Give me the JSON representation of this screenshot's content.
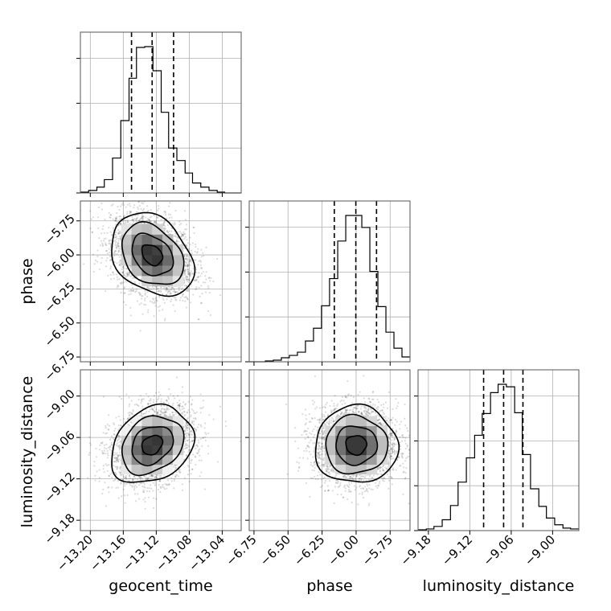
{
  "chart_data": {
    "type": "corner",
    "grid": true,
    "parameters": [
      "geocent_time",
      "phase",
      "luminosity_distance"
    ],
    "axis_labels": {
      "geocent_time": "geocent_time",
      "phase": "phase",
      "luminosity_distance": "luminosity_distance"
    },
    "ranges": {
      "geocent_time": [
        -13.212,
        -13.017
      ],
      "phase": [
        -6.785,
        -5.604
      ],
      "luminosity_distance": [
        -9.195,
        -8.962
      ]
    },
    "ticks": {
      "geocent_time": [
        -13.2,
        -13.16,
        -13.12,
        -13.08,
        -13.04
      ],
      "phase": [
        -6.75,
        -6.5,
        -6.25,
        -6.0,
        -5.75
      ],
      "luminosity_distance": [
        -9.18,
        -9.12,
        -9.06,
        -9.0
      ]
    },
    "tick_labels": {
      "geocent_time": [
        "−13.20",
        "−13.16",
        "−13.12",
        "−13.08",
        "−13.04"
      ],
      "phase": [
        "−6.75",
        "−6.50",
        "−6.25",
        "−6.00",
        "−5.75"
      ],
      "luminosity_distance": [
        "−9.18",
        "−9.12",
        "−9.06",
        "−9.00"
      ]
    },
    "quantiles": {
      "geocent_time": [
        -13.15,
        -13.125,
        -13.099
      ],
      "phase": [
        -6.16,
        -6.002,
        -5.85
      ],
      "luminosity_distance": [
        -9.1,
        -9.071,
        -9.043
      ]
    },
    "histograms": {
      "geocent_time": {
        "edges": [
          -13.212,
          -13.202,
          -13.192,
          -13.183,
          -13.173,
          -13.163,
          -13.153,
          -13.144,
          -13.134,
          -13.124,
          -13.114,
          -13.105,
          -13.095,
          -13.085,
          -13.076,
          -13.066,
          -13.056,
          -13.046,
          -13.037,
          -13.027,
          -13.017
        ],
        "counts": [
          1,
          3,
          7,
          16,
          42,
          87,
          138,
          175,
          176,
          147,
          97,
          54,
          39,
          24,
          12,
          7,
          3,
          1,
          0,
          0
        ]
      },
      "phase": {
        "edges": [
          -6.785,
          -6.726,
          -6.667,
          -6.608,
          -6.549,
          -6.49,
          -6.431,
          -6.372,
          -6.313,
          -6.254,
          -6.195,
          -6.135,
          -6.076,
          -6.017,
          -5.958,
          -5.899,
          -5.84,
          -5.781,
          -5.722,
          -5.663,
          -5.604
        ],
        "counts": [
          0,
          0,
          1,
          2,
          5,
          8,
          12,
          26,
          42,
          70,
          104,
          151,
          183,
          183,
          168,
          113,
          69,
          37,
          17,
          6
        ]
      },
      "luminosity_distance": {
        "edges": [
          -9.195,
          -9.183,
          -9.172,
          -9.16,
          -9.148,
          -9.137,
          -9.125,
          -9.113,
          -9.102,
          -9.09,
          -9.079,
          -9.067,
          -9.055,
          -9.044,
          -9.032,
          -9.02,
          -9.009,
          -8.997,
          -8.985,
          -8.974,
          -8.962
        ],
        "counts": [
          1,
          2,
          5,
          13,
          30,
          58,
          87,
          114,
          140,
          165,
          175,
          172,
          141,
          91,
          50,
          29,
          15,
          7,
          3,
          2
        ]
      }
    },
    "scatter_panels": [
      {
        "x": "geocent_time",
        "y": "phase",
        "center": [
          -13.125,
          -6.0
        ],
        "sigma": [
          0.025,
          0.152
        ],
        "correlation": -0.3,
        "samples": 3000
      },
      {
        "x": "geocent_time",
        "y": "luminosity_distance",
        "center": [
          -13.125,
          -9.071
        ],
        "sigma": [
          0.025,
          0.028
        ],
        "correlation": 0.25,
        "samples": 3000
      },
      {
        "x": "phase",
        "y": "luminosity_distance",
        "center": [
          -6.0,
          -9.071
        ],
        "sigma": [
          0.152,
          0.028
        ],
        "correlation": 0.0,
        "samples": 3000
      }
    ]
  }
}
